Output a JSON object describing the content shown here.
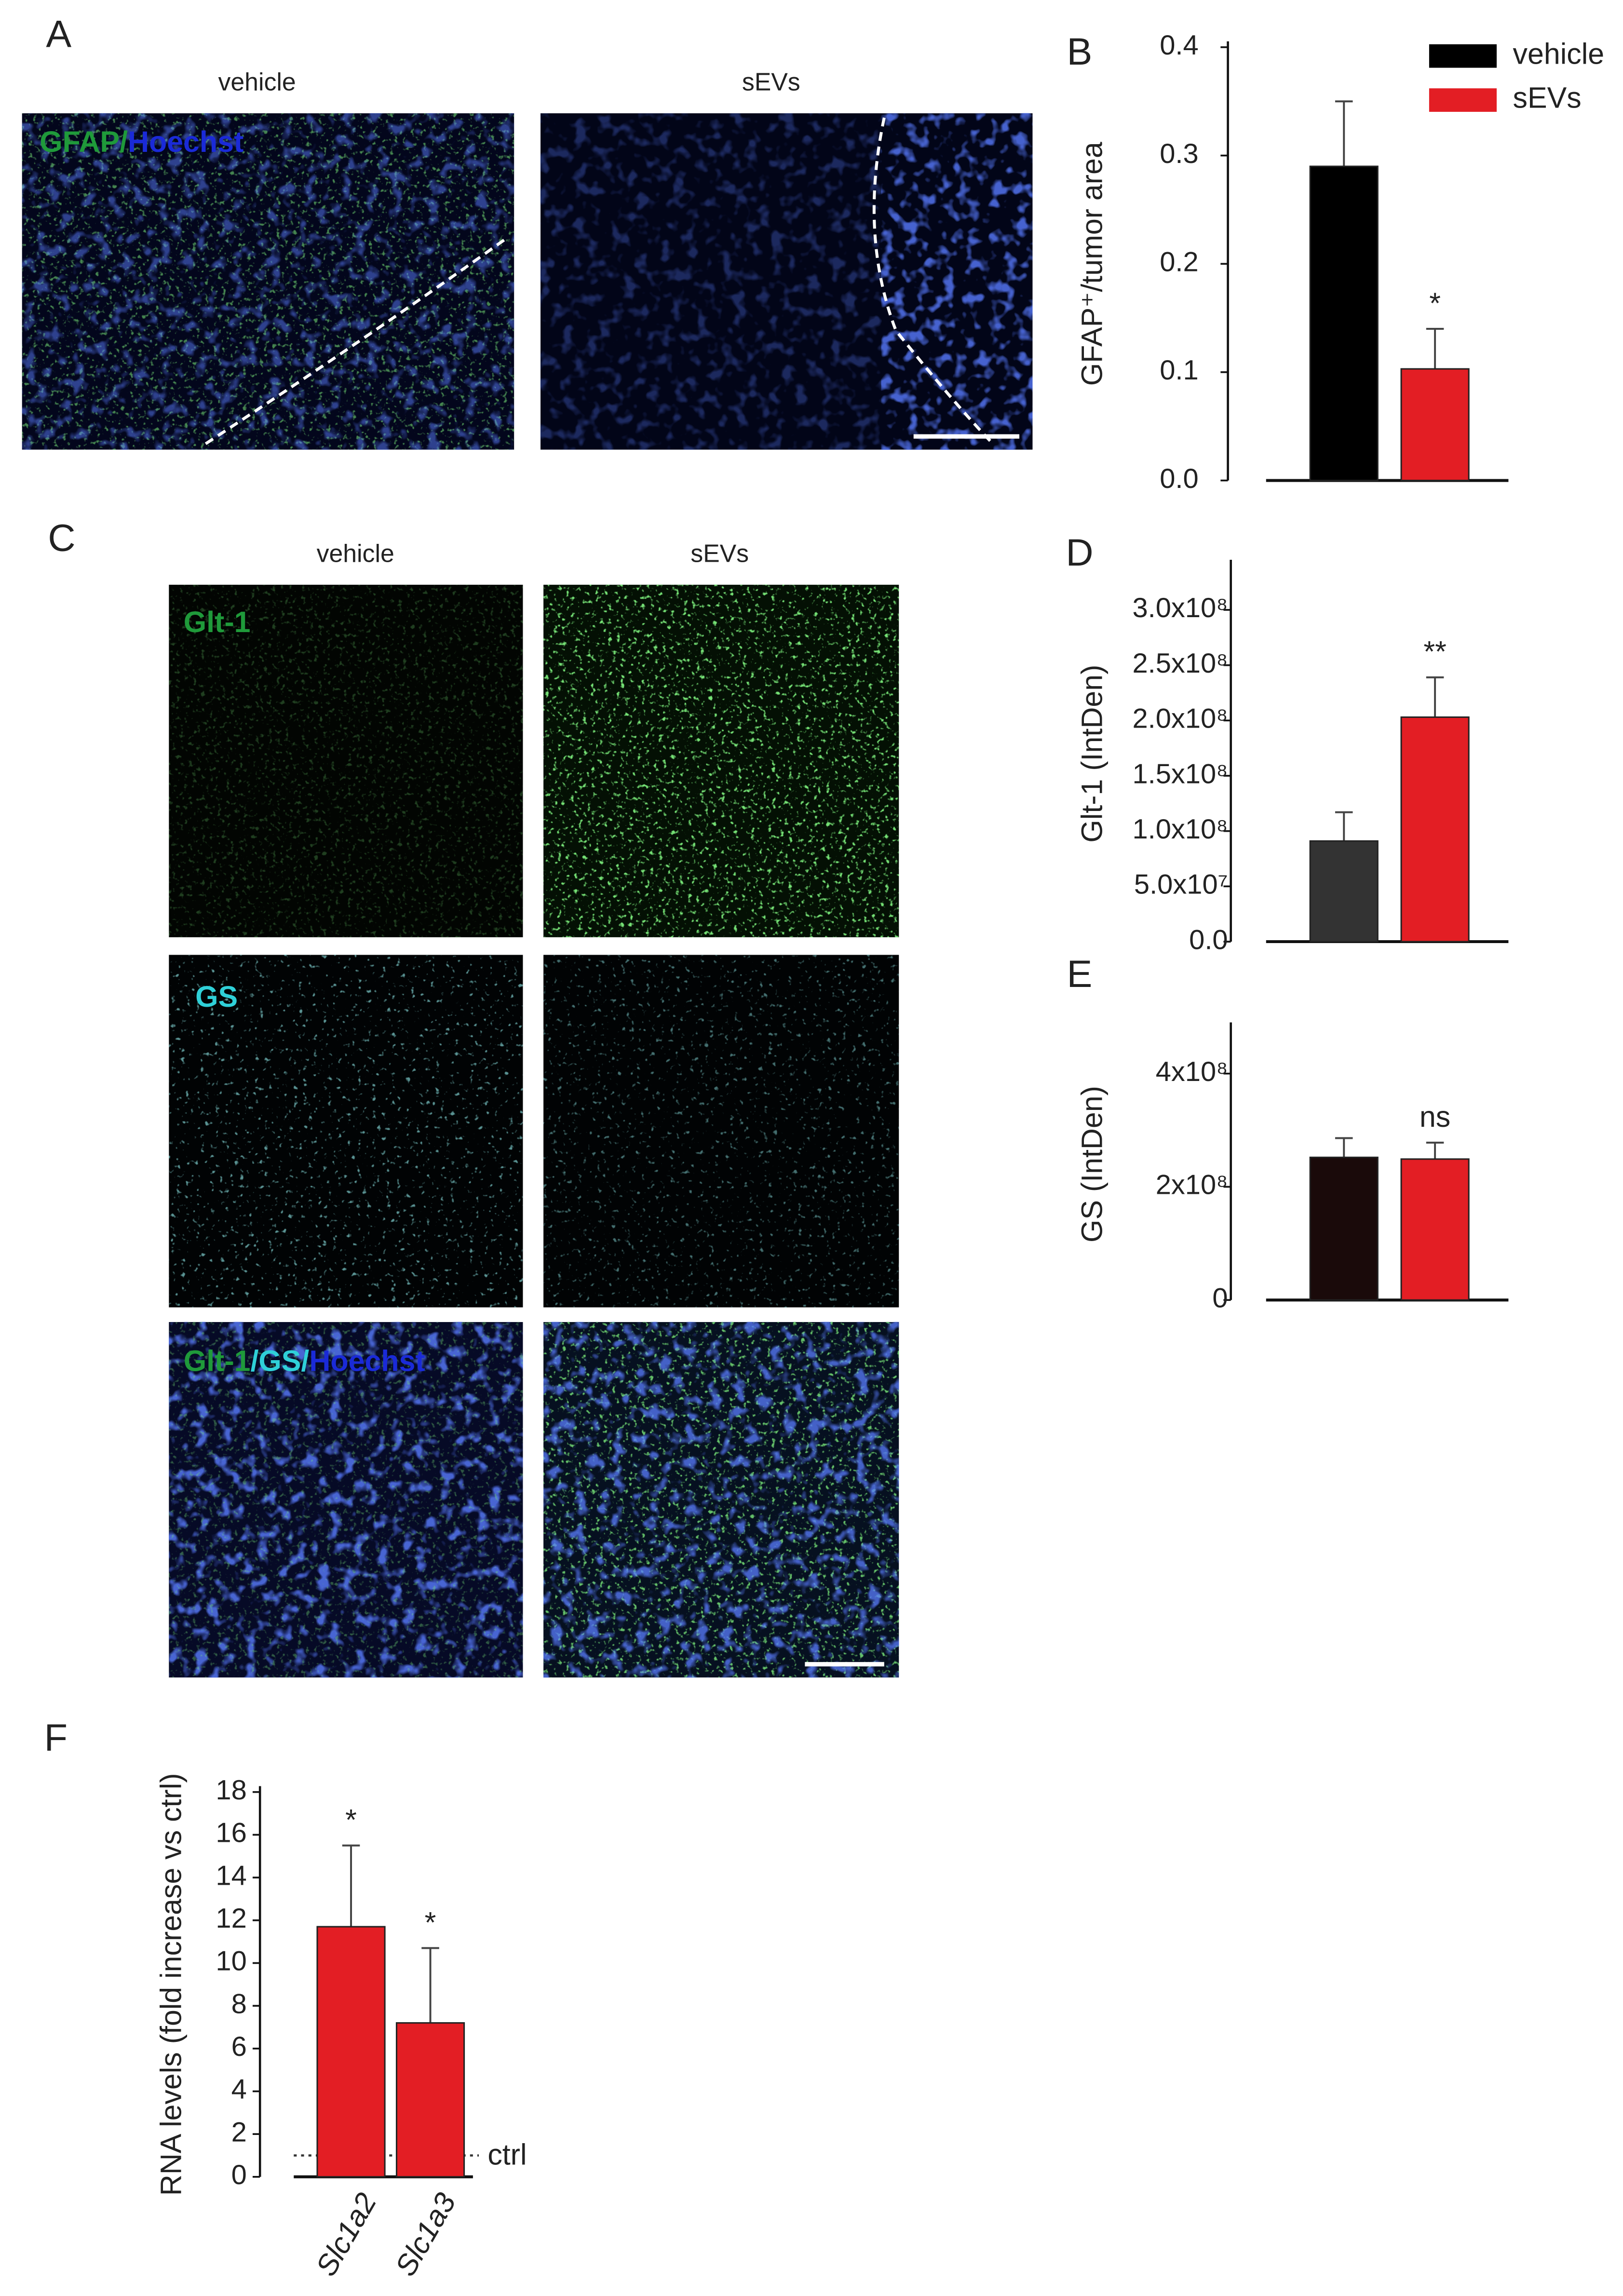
{
  "figure": {
    "panel_labels": [
      "A",
      "B",
      "C",
      "D",
      "E",
      "F"
    ],
    "panel_a": {
      "columns": [
        "vehicle",
        "sEVs"
      ],
      "stain": [
        "GFAP",
        "/",
        "Hoechst"
      ]
    },
    "panel_c": {
      "columns": [
        "vehicle",
        "sEVs"
      ],
      "rows": [
        [
          "Glt-1"
        ],
        [
          "GS"
        ],
        [
          "Glt-1",
          "/",
          "GS",
          "/",
          "Hoechst"
        ]
      ]
    }
  },
  "chart_data": [
    {
      "type": "bar",
      "y_label": "GFAP⁺/tumor area",
      "ylim": [
        0,
        0.4
      ],
      "yticks": [
        {
          "value": 0,
          "label": "0.0"
        },
        0.1,
        0.2,
        0.3,
        0.4
      ],
      "legend": "upper right",
      "series": [
        {
          "name": "vehicle",
          "color": "#000000",
          "values": [
            0.29
          ],
          "errors": [
            0.06
          ]
        },
        {
          "name": "sEVs",
          "color": "#e31e24",
          "values": [
            0.103
          ],
          "errors": [
            0.037
          ],
          "annotations": [
            "*"
          ]
        }
      ]
    },
    {
      "type": "bar",
      "y_label": "Glt-1 (IntDen)",
      "ylim": [
        0,
        340000000
      ],
      "yticks": [
        {
          "value": 0,
          "label": "0.0"
        },
        {
          "value": 50000000,
          "label": "5.0x10⁷"
        },
        {
          "value": 100000000,
          "label": "1.0x10⁸"
        },
        {
          "value": 150000000,
          "label": "1.5x10⁸"
        },
        {
          "value": 200000000,
          "label": "2.0x10⁸"
        },
        {
          "value": 250000000,
          "label": "2.5x10⁸"
        },
        {
          "value": 300000000,
          "label": "3.0x10⁸"
        }
      ],
      "series": [
        {
          "color": "#333333",
          "values": [
            91000000
          ],
          "errors": [
            26000000
          ]
        },
        {
          "color": "#e31e24",
          "values": [
            203000000
          ],
          "errors": [
            36000000
          ],
          "annotations": [
            "**"
          ]
        }
      ]
    },
    {
      "type": "bar",
      "y_label": "GS (IntDen)",
      "ylim": [
        0,
        480000000
      ],
      "yticks": [
        0,
        {
          "value": 200000000,
          "label": "2x10⁸"
        },
        {
          "value": 400000000,
          "label": "4x10⁸"
        }
      ],
      "series": [
        {
          "color": "#1a0a0a",
          "values": [
            252000000
          ],
          "errors": [
            34000000
          ]
        },
        {
          "color": "#e31e24",
          "values": [
            249000000
          ],
          "errors": [
            29000000
          ],
          "annotations": [
            "ns"
          ]
        }
      ]
    },
    {
      "type": "bar",
      "y_label": "RNA levels (fold increase vs ctrl)",
      "ylim": [
        0,
        18
      ],
      "yticks": [
        0,
        2,
        4,
        6,
        8,
        10,
        12,
        14,
        16,
        18
      ],
      "categories": [
        "Slc1a2",
        "Slc1a3"
      ],
      "reference_line": {
        "value": 1,
        "label": "ctrl"
      },
      "series": [
        {
          "color": "#e31e24",
          "values": [
            11.7,
            7.2
          ],
          "errors": [
            3.8,
            3.5
          ],
          "annotations": [
            "*",
            "*"
          ]
        }
      ]
    }
  ]
}
